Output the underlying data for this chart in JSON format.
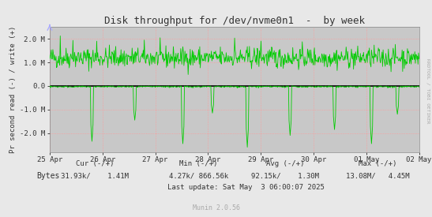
{
  "title": "Disk throughput for /dev/nvme0n1  -  by week",
  "ylabel": "Pr second read (-) / write (+)",
  "background_color": "#e8e8e8",
  "plot_bg_color": "#c8c8c8",
  "grid_color": "#ff9999",
  "line_color": "#00cc00",
  "zero_line_color": "#000000",
  "ylim": [
    -2800000.0,
    2500000.0
  ],
  "yticks": [
    -2000000,
    -1000000,
    0,
    1000000,
    2000000
  ],
  "ytick_labels": [
    "-2.0 M",
    "-1.0 M",
    "0.0",
    "1.0 M",
    "2.0 M"
  ],
  "xtick_labels": [
    "25 Apr",
    "26 Apr",
    "27 Apr",
    "28 Apr",
    "29 Apr",
    "30 Apr",
    "01 May",
    "02 May"
  ],
  "legend_label": "Bytes",
  "legend_color": "#00cc00",
  "cur_label": "Cur (-/+)",
  "min_label": "Min (-/+)",
  "avg_label": "Avg (-/+)",
  "max_label": "Max (-/+)",
  "cur_val": "31.93k/    1.41M",
  "min_val": "4.27k/ 866.56k",
  "avg_val": "92.15k/    1.30M",
  "max_val": "13.08M/   4.45M",
  "last_update": "Last update: Sat May  3 06:00:07 2025",
  "munin_label": "Munin 2.0.56",
  "rrdtool_label": "RRDTOOL / TOBI OETIKER",
  "n_points": 700,
  "seed": 42
}
